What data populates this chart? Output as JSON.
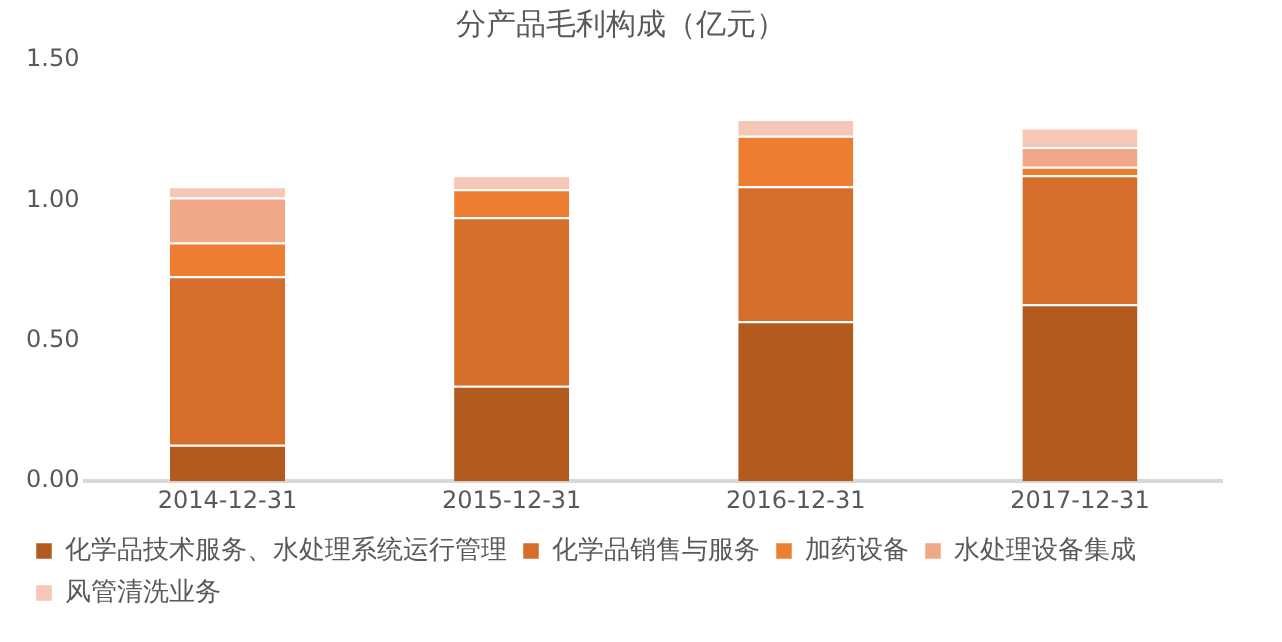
{
  "chart_data": {
    "type": "bar",
    "title": "分产品毛利构成（亿元）",
    "categories": [
      "2014-12-31",
      "2015-12-31",
      "2016-12-31",
      "2017-12-31"
    ],
    "stacked": true,
    "ylim": [
      0,
      1.5
    ],
    "yticks": [
      {
        "value": 0,
        "label": "0.00"
      },
      {
        "value": 0.5,
        "label": "0.50"
      },
      {
        "value": 1,
        "label": "1.00"
      },
      {
        "value": 1.5,
        "label": "1.50"
      }
    ],
    "grid": false,
    "legend": "bottom",
    "series": [
      {
        "name": "化学品技术服务、水处理系统运行管理",
        "color": "#b35a1f",
        "values": [
          0.13,
          0.34,
          0.57,
          0.63
        ]
      },
      {
        "name": "化学品销售与服务",
        "color": "#d46e2a",
        "values": [
          0.6,
          0.6,
          0.48,
          0.46
        ]
      },
      {
        "name": "加药设备",
        "color": "#ed7d31",
        "values": [
          0.12,
          0.1,
          0.18,
          0.03
        ]
      },
      {
        "name": "水处理设备集成",
        "color": "#f0a889",
        "values": [
          0.16,
          0,
          0,
          0.07
        ]
      },
      {
        "name": "风管清洗业务",
        "color": "#f6c6b6",
        "values": [
          0.04,
          0.05,
          0.06,
          0.07
        ]
      }
    ]
  }
}
